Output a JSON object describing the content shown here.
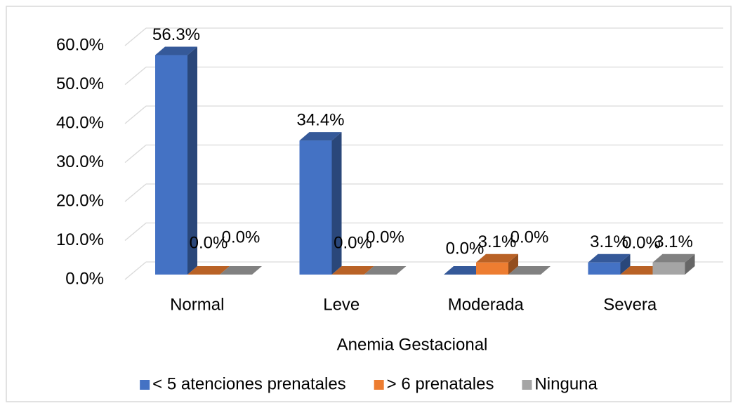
{
  "chart_data": {
    "type": "bar3d",
    "x_label": "Anemia Gestacional",
    "categories": [
      "Normal",
      "Leve",
      "Moderada",
      "Severa"
    ],
    "series": [
      {
        "name": "< 5 atenciones prenatales",
        "color": "#4472c4",
        "values": [
          56.3,
          34.4,
          0,
          3.1
        ],
        "value_labels": [
          "56.3%",
          "34.4%",
          "0.0%",
          "3.1%"
        ]
      },
      {
        "name": "> 6 prenatales",
        "color": "#ed7d31",
        "values": [
          0,
          0,
          3.1,
          0
        ],
        "value_labels": [
          "0.0%",
          "0.0%",
          "3.1%",
          "0.0%"
        ]
      },
      {
        "name": "Ninguna",
        "color": "#a5a5a5",
        "values": [
          0,
          0,
          0,
          3.1
        ],
        "value_labels": [
          "0.0%",
          "0.0%",
          "0.0%",
          "3.1%"
        ]
      }
    ],
    "ylim": [
      0,
      60
    ],
    "yticks": [
      {
        "value": 0,
        "label": "0.0%"
      },
      {
        "value": 10,
        "label": "10.0%"
      },
      {
        "value": 20,
        "label": "20.0%"
      },
      {
        "value": 30,
        "label": "30.0%"
      },
      {
        "value": 40,
        "label": "40.0%"
      },
      {
        "value": 50,
        "label": "50.0%"
      },
      {
        "value": 60,
        "label": "60.0%"
      }
    ],
    "grid": true,
    "legend": "bottom"
  }
}
